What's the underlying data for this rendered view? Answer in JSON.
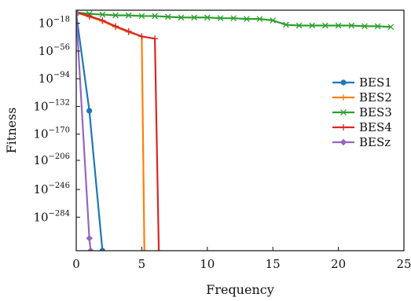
{
  "chart_data": {
    "type": "line",
    "xlabel": "Frequency",
    "ylabel": "Fitness",
    "xlim": [
      0,
      25
    ],
    "xticks": [
      0,
      5,
      10,
      15,
      20,
      25
    ],
    "y_scale": "log",
    "y_exponent_range": [
      -330,
      0
    ],
    "yticks": [
      {
        "base": "10",
        "exp": "−18",
        "value": -18
      },
      {
        "base": "10",
        "exp": "−56",
        "value": -56
      },
      {
        "base": "10",
        "exp": "−94",
        "value": -94
      },
      {
        "base": "10",
        "exp": "−132",
        "value": -132
      },
      {
        "base": "10",
        "exp": "−170",
        "value": -170
      },
      {
        "base": "10",
        "exp": "−206",
        "value": -206
      },
      {
        "base": "10",
        "exp": "−246",
        "value": -246
      },
      {
        "base": "10",
        "exp": "−284",
        "value": -284
      }
    ],
    "grid": false,
    "legend_position": "right",
    "series": [
      {
        "name": "BES1",
        "color": "#1f77b4",
        "marker": "circle",
        "x": [
          0,
          1,
          2
        ],
        "y": [
          -5,
          -138,
          -330
        ]
      },
      {
        "name": "BES2",
        "color": "#ff7f0e",
        "marker": "plus",
        "x": [
          0,
          1,
          2,
          3,
          4,
          5,
          5.2
        ],
        "y": [
          -3,
          -9,
          -15,
          -23,
          -30,
          -36,
          -330
        ]
      },
      {
        "name": "BES3",
        "color": "#2ca02c",
        "marker": "x",
        "x": [
          0,
          1,
          2,
          3,
          4,
          5,
          6,
          7,
          8,
          9,
          10,
          11,
          12,
          13,
          14,
          15,
          16,
          17,
          18,
          19,
          20,
          21,
          22,
          23,
          24
        ],
        "y": [
          -3,
          -5,
          -6,
          -7,
          -7,
          -8,
          -8,
          -9,
          -10,
          -10,
          -10,
          -11,
          -11,
          -12,
          -12,
          -14,
          -20,
          -21,
          -21,
          -21,
          -21,
          -21,
          -22,
          -22,
          -23
        ]
      },
      {
        "name": "BES4",
        "color": "#d62728",
        "marker": "plus",
        "x": [
          0,
          1,
          2,
          3,
          4,
          5,
          6,
          6.3
        ],
        "y": [
          -3,
          -8,
          -14,
          -22,
          -29,
          -36,
          -39,
          -330
        ]
      },
      {
        "name": "BESz",
        "color": "#9467bd",
        "marker": "diamond",
        "x": [
          0,
          1,
          1.1
        ],
        "y": [
          -5,
          -313,
          -330
        ]
      }
    ]
  }
}
